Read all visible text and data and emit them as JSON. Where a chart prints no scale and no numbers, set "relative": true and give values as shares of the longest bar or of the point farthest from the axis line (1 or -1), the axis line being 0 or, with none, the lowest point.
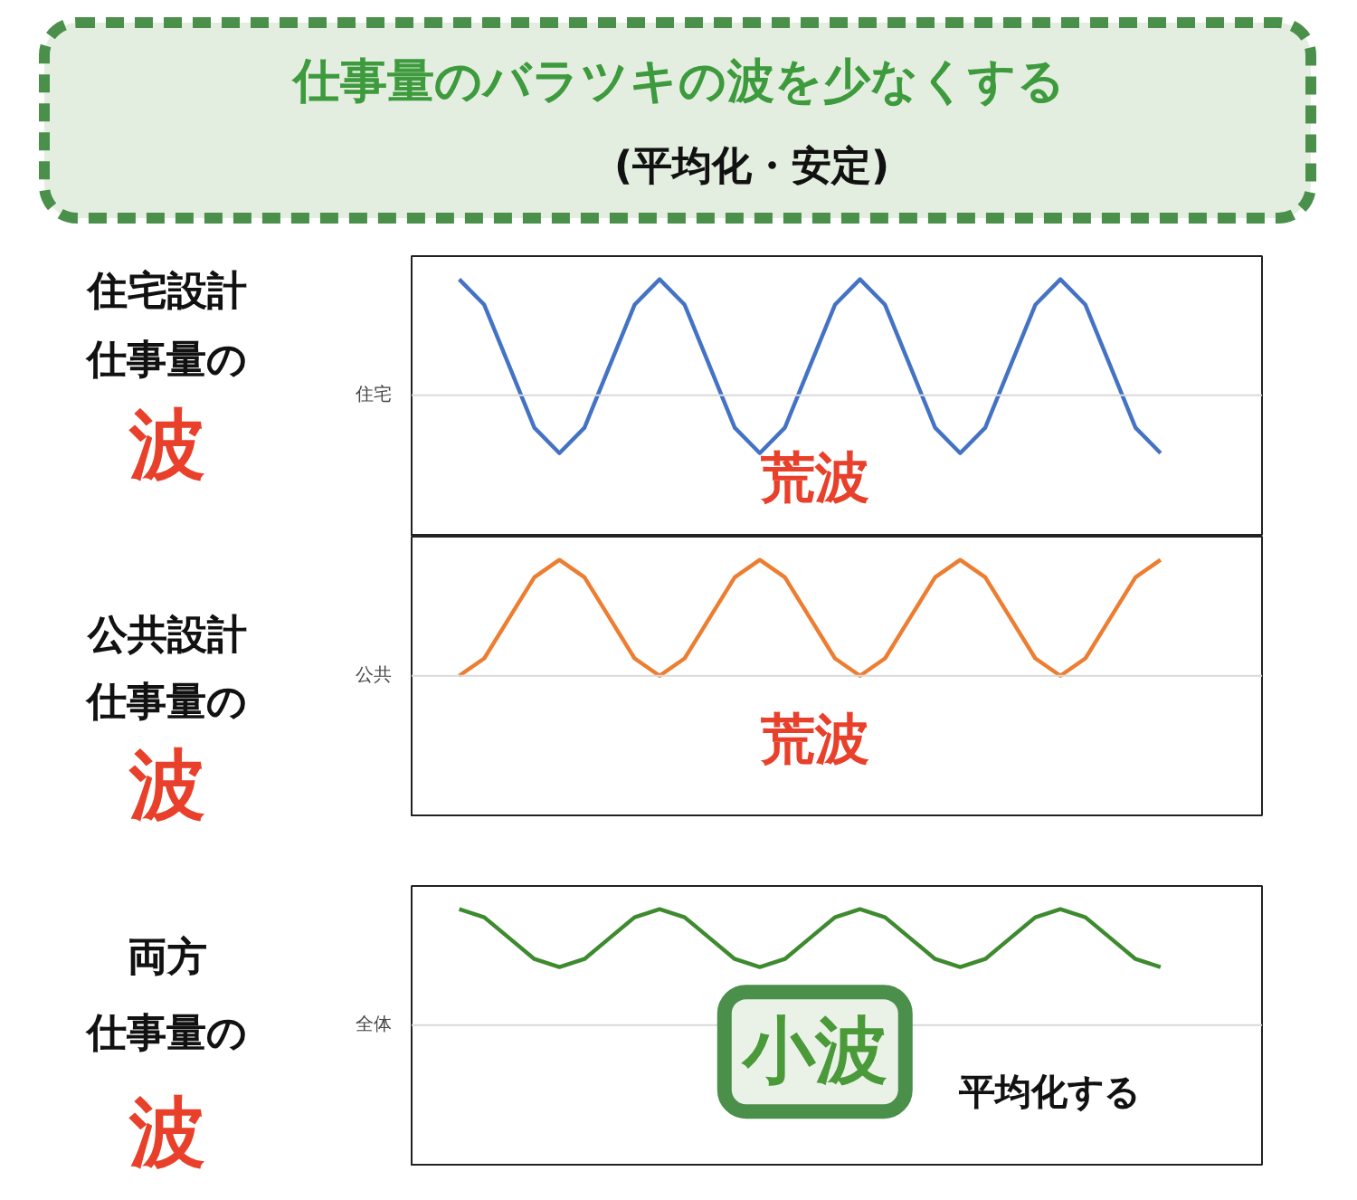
{
  "chart_data": [
    {
      "type": "other",
      "title": "仕事量のバラツキの波を少なくする",
      "subtitle": "(平均化・安定)"
    },
    {
      "type": "other",
      "annotations": [
        "住宅設計",
        "仕事量の",
        "波",
        "公共設計",
        "仕事量の",
        "波",
        "両方",
        "仕事量の",
        "波"
      ]
    },
    {
      "type": "line",
      "relative": true,
      "ylabel": "住宅",
      "categories": [
        null,
        null,
        null,
        null,
        null,
        null,
        null,
        null,
        null,
        null,
        null,
        null,
        null,
        null,
        null,
        null,
        null,
        null,
        null,
        null,
        null,
        null,
        null,
        null,
        null,
        null,
        null,
        null,
        null
      ],
      "series": [
        {
          "color": "#4472c4",
          "values": [
            1,
            0.78,
            0.25,
            -0.28,
            -0.5,
            -0.28,
            0.25,
            0.78,
            1,
            0.78,
            0.25,
            -0.28,
            -0.5,
            -0.28,
            0.25,
            0.78,
            1,
            0.78,
            0.25,
            -0.28,
            -0.5,
            -0.28,
            0.25,
            0.78,
            1,
            0.78,
            0.25,
            -0.28,
            -0.5
          ]
        }
      ],
      "ref_lines": [
        {
          "axis": "y",
          "value": 0
        }
      ],
      "annotations": [
        "荒波"
      ]
    },
    {
      "type": "line",
      "relative": true,
      "ylabel": "公共",
      "categories": [
        null,
        null,
        null,
        null,
        null,
        null,
        null,
        null,
        null,
        null,
        null,
        null,
        null,
        null,
        null,
        null,
        null,
        null,
        null,
        null,
        null,
        null,
        null,
        null,
        null,
        null,
        null,
        null,
        null
      ],
      "series": [
        {
          "color": "#ed7d31",
          "values": [
            0,
            0.15,
            0.5,
            0.85,
            1,
            0.85,
            0.5,
            0.15,
            0,
            0.15,
            0.5,
            0.85,
            1,
            0.85,
            0.5,
            0.15,
            0,
            0.15,
            0.5,
            0.85,
            1,
            0.85,
            0.5,
            0.15,
            0,
            0.15,
            0.5,
            0.85,
            1
          ]
        }
      ],
      "ref_lines": [
        {
          "axis": "y",
          "value": 0
        }
      ],
      "annotations": [
        "荒波"
      ]
    },
    {
      "type": "line",
      "relative": true,
      "ylabel": "全体",
      "categories": [
        null,
        null,
        null,
        null,
        null,
        null,
        null,
        null,
        null,
        null,
        null,
        null,
        null,
        null,
        null,
        null,
        null,
        null,
        null,
        null,
        null,
        null,
        null,
        null,
        null,
        null,
        null,
        null,
        null
      ],
      "series": [
        {
          "color": "#3e8a2f",
          "values": [
            1,
            0.93,
            0.75,
            0.57,
            0.5,
            0.57,
            0.75,
            0.93,
            1,
            0.93,
            0.75,
            0.57,
            0.5,
            0.57,
            0.75,
            0.93,
            1,
            0.93,
            0.75,
            0.57,
            0.5,
            0.57,
            0.75,
            0.93,
            1,
            0.93,
            0.75,
            0.57,
            0.5
          ]
        }
      ],
      "ref_lines": [
        {
          "axis": "y",
          "value": 0
        }
      ],
      "annotations": [
        "小波",
        "平均化する"
      ]
    }
  ]
}
